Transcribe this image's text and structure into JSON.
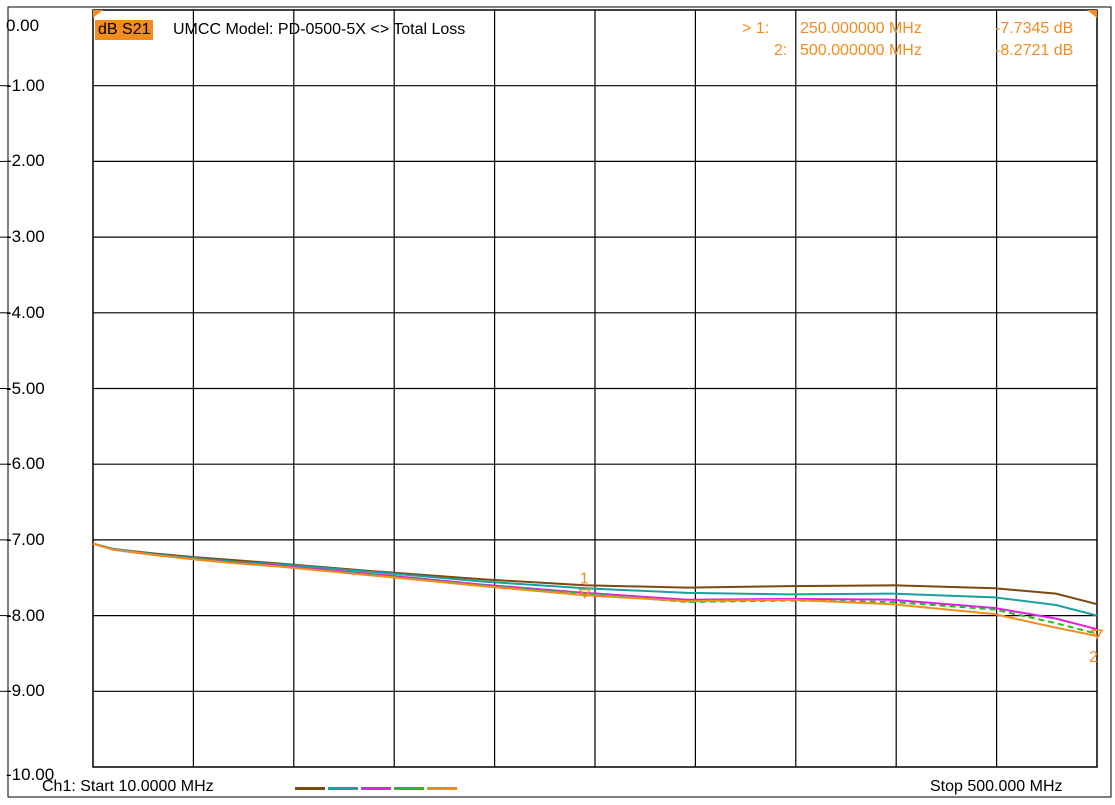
{
  "trace": {
    "badge": "dB S21",
    "title": "UMCC Model: PD-0500-5X <> Total Loss"
  },
  "markers": [
    {
      "arrow": "> 1:",
      "freq": "250.000000 MHz",
      "value": "-7.7345 dB"
    },
    {
      "arrow": "2:",
      "freq": "500.000000 MHz",
      "value": "-8.2721 dB"
    }
  ],
  "footer": {
    "start": "Ch1: Start  10.0000 MHz",
    "stop": "Stop  500.000 MHz"
  },
  "colors": {
    "accent": "#f28c1e",
    "grid": "#000000",
    "trace1": "#7a4a10",
    "trace2": "#19a0a0",
    "trace3": "#e020e0",
    "trace4": "#20c020",
    "trace5": "#f28c1e"
  },
  "chart_data": {
    "type": "line",
    "title": "UMCC Model: PD-0500-5X <> Total Loss",
    "xlabel": "",
    "ylabel": "",
    "xlim": [
      10,
      500
    ],
    "ylim": [
      -10,
      0
    ],
    "y_ticks": [
      "0.00",
      "-1.00",
      "-2.00",
      "-3.00",
      "-4.00",
      "-5.00",
      "-6.00",
      "-7.00",
      "-8.00",
      "-9.00",
      "-10.00"
    ],
    "grid": true,
    "x": [
      10,
      20,
      40,
      60,
      80,
      100,
      150,
      200,
      250,
      300,
      350,
      400,
      450,
      480,
      500
    ],
    "series": [
      {
        "values": [
          -7.05,
          -7.12,
          -7.18,
          -7.23,
          -7.27,
          -7.31,
          -7.42,
          -7.52,
          -7.6,
          -7.63,
          -7.61,
          -7.6,
          -7.64,
          -7.71,
          -7.85
        ]
      },
      {
        "values": [
          -7.05,
          -7.12,
          -7.19,
          -7.24,
          -7.29,
          -7.32,
          -7.43,
          -7.55,
          -7.64,
          -7.7,
          -7.72,
          -7.71,
          -7.76,
          -7.86,
          -8.0
        ]
      },
      {
        "values": [
          -7.05,
          -7.13,
          -7.2,
          -7.25,
          -7.3,
          -7.34,
          -7.46,
          -7.59,
          -7.7,
          -7.79,
          -7.78,
          -7.79,
          -7.9,
          -8.04,
          -8.18
        ]
      },
      {
        "values": [
          -7.05,
          -7.13,
          -7.2,
          -7.25,
          -7.3,
          -7.35,
          -7.47,
          -7.6,
          -7.71,
          -7.82,
          -7.8,
          -7.82,
          -7.92,
          -8.1,
          -8.24
        ]
      },
      {
        "values": [
          -7.05,
          -7.13,
          -7.2,
          -7.26,
          -7.31,
          -7.35,
          -7.48,
          -7.61,
          -7.73,
          -7.81,
          -7.79,
          -7.85,
          -7.98,
          -8.16,
          -8.27
        ]
      }
    ],
    "marker_points": [
      {
        "label": "1",
        "x": 250,
        "y": -7.7345
      },
      {
        "label": "2",
        "x": 500,
        "y": -8.2721
      }
    ]
  }
}
